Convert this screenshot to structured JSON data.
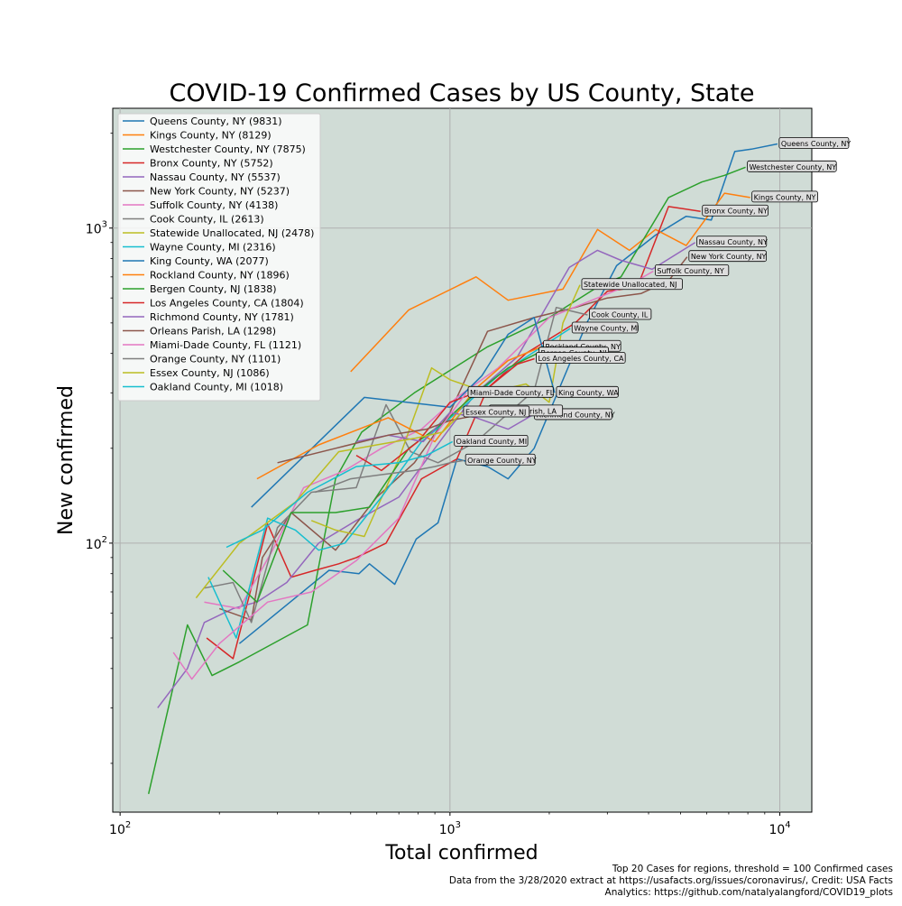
{
  "chart_data": {
    "type": "line",
    "title": "COVID-19 Confirmed Cases by US County, State",
    "xlabel": "Total confirmed",
    "ylabel": "New confirmed",
    "xscale": "log",
    "yscale": "log",
    "xlim": [
      95,
      12500
    ],
    "ylim": [
      14,
      2400
    ],
    "x_ticks": [
      100,
      1000,
      10000
    ],
    "y_ticks": [
      100,
      1000
    ],
    "x_tick_labels": [
      {
        "base": "10",
        "exp": "2"
      },
      {
        "base": "10",
        "exp": "3"
      },
      {
        "base": "10",
        "exp": "4"
      }
    ],
    "y_tick_labels": [
      {
        "base": "10",
        "exp": "2"
      },
      {
        "base": "10",
        "exp": "3"
      }
    ],
    "grid": true,
    "legend_position": "top-left",
    "background_color": "#d0dcd6",
    "footnote": [
      "Top 20 Cases for regions, threshold = 100 Confirmed cases",
      "Data from the 3/28/2020 extract at https://usafacts.org/issues/coronavirus/, Credit: USA Facts",
      "Analytics: https://github.com/natalyalangford/COVID19_plots"
    ],
    "series": [
      {
        "name": "Queens County, NY (9831)",
        "label": "Queens County, NY",
        "color": "#1f77b4",
        "x": [
          230,
          430,
          530,
          570,
          680,
          790,
          920,
          1050,
          1300,
          1500,
          1800,
          2600,
          3200,
          4200,
          5200,
          6200,
          7300,
          8200,
          9831
        ],
        "y": [
          48,
          82,
          80,
          86,
          74,
          103,
          116,
          185,
          175,
          160,
          200,
          500,
          760,
          950,
          1090,
          1060,
          1750,
          1780,
          1850
        ]
      },
      {
        "name": "Kings County, NY (8129)",
        "label": "Kings County, NY",
        "color": "#ff7f0e",
        "x": [
          500,
          750,
          1200,
          1500,
          2200,
          2800,
          3500,
          4200,
          5200,
          6800,
          8129
        ],
        "y": [
          350,
          550,
          700,
          590,
          640,
          990,
          850,
          990,
          880,
          1290,
          1250
        ]
      },
      {
        "name": "Westchester County, NY (7875)",
        "label": "Westchester County, NY",
        "color": "#2ca02c",
        "x": [
          122,
          160,
          190,
          230,
          370,
          450,
          540,
          780,
          1300,
          2000,
          2800,
          3300,
          4600,
          5800,
          6800,
          7875
        ],
        "y": [
          16,
          55,
          38,
          42,
          55,
          160,
          225,
          300,
          420,
          520,
          650,
          700,
          1250,
          1400,
          1470,
          1560
        ]
      },
      {
        "name": "Bronx County, NY (5752)",
        "label": "Bronx County, NY",
        "color": "#d62728",
        "x": [
          183,
          220,
          280,
          330,
          390,
          460,
          520,
          640,
          820,
          1050,
          1300,
          1700,
          2400,
          3000,
          3700,
          4600,
          5752
        ],
        "y": [
          50,
          43,
          115,
          78,
          82,
          86,
          90,
          100,
          160,
          185,
          310,
          400,
          500,
          630,
          650,
          1170,
          1130
        ]
      },
      {
        "name": "Nassau County, NY (5537)",
        "label": "Nassau County, NY",
        "color": "#9467bd",
        "x": [
          130,
          160,
          180,
          220,
          260,
          320,
          400,
          520,
          700,
          900,
          1200,
          1600,
          2300,
          2800,
          3300,
          4100,
          5537
        ],
        "y": [
          30,
          40,
          56,
          62,
          65,
          75,
          100,
          118,
          140,
          200,
          300,
          390,
          750,
          850,
          790,
          740,
          900
        ]
      },
      {
        "name": "New York County, NY (5237)",
        "label": "New York County, NY",
        "color": "#8c564b",
        "x": [
          200,
          250,
          270,
          330,
          450,
          600,
          780,
          1000,
          1300,
          1800,
          2400,
          3000,
          3800,
          4600,
          5237
        ],
        "y": [
          62,
          57,
          90,
          125,
          95,
          140,
          180,
          260,
          470,
          520,
          560,
          600,
          620,
          680,
          810
        ]
      },
      {
        "name": "Suffolk County, NY (4138)",
        "label": "Suffolk County, NY",
        "color": "#e377c2",
        "x": [
          180,
          230,
          290,
          360,
          480,
          620,
          820,
          1050,
          1400,
          2000,
          2800,
          3500,
          4138
        ],
        "y": [
          65,
          62,
          95,
          150,
          170,
          200,
          230,
          290,
          360,
          520,
          600,
          660,
          730
        ]
      },
      {
        "name": "Cook County, IL (2613)",
        "label": "Cook County, IL",
        "color": "#7f7f7f",
        "x": [
          180,
          220,
          250,
          300,
          380,
          520,
          640,
          760,
          920,
          1200,
          1800,
          2100,
          2613
        ],
        "y": [
          72,
          75,
          56,
          112,
          145,
          150,
          275,
          195,
          180,
          210,
          305,
          560,
          530
        ]
      },
      {
        "name": "Statewide Unallocated, NJ (2478)",
        "label": "Statewide Unallocated, NJ",
        "color": "#bcbd22",
        "x": [
          380,
          450,
          550,
          700,
          880,
          1000,
          1300,
          1700,
          2000,
          2200,
          2478
        ],
        "y": [
          118,
          110,
          105,
          185,
          360,
          330,
          300,
          320,
          280,
          500,
          660
        ]
      },
      {
        "name": "Wayne County, MI (2316)",
        "label": "Wayne County, MI",
        "color": "#17becf",
        "x": [
          185,
          225,
          280,
          340,
          400,
          480,
          620,
          820,
          1050,
          1400,
          1900,
          2316
        ],
        "y": [
          78,
          50,
          120,
          110,
          95,
          100,
          140,
          210,
          260,
          340,
          420,
          480
        ]
      },
      {
        "name": "King County, WA (2077)",
        "label": "King County, WA",
        "color": "#1f77b4",
        "x": [
          250,
          550,
          1000,
          1250,
          1500,
          1800,
          2077
        ],
        "y": [
          130,
          290,
          270,
          340,
          460,
          520,
          300
        ]
      },
      {
        "name": "Rockland County, NY (1896)",
        "label": "Rockland County, NY",
        "color": "#ff7f0e",
        "x": [
          260,
          400,
          650,
          900,
          1200,
          1500,
          1896
        ],
        "y": [
          160,
          205,
          250,
          210,
          310,
          380,
          420
        ]
      },
      {
        "name": "Bergen County, NJ (1838)",
        "label": "Bergen County, NJ",
        "color": "#2ca02c",
        "x": [
          205,
          260,
          330,
          450,
          570,
          750,
          950,
          1200,
          1500,
          1838
        ],
        "y": [
          82,
          65,
          125,
          125,
          130,
          200,
          240,
          300,
          360,
          400
        ]
      },
      {
        "name": "Los Angeles County, CA (1804)",
        "label": "Los Angeles County, CA",
        "color": "#d62728",
        "x": [
          520,
          620,
          800,
          1000,
          1300,
          1600,
          1804
        ],
        "y": [
          190,
          170,
          210,
          280,
          310,
          370,
          385
        ]
      },
      {
        "name": "Richmond County, NY (1781)",
        "label": "Richmond County, NY",
        "color": "#9467bd",
        "x": [
          520,
          650,
          830,
          1000,
          1200,
          1500,
          1781
        ],
        "y": [
          210,
          220,
          210,
          260,
          250,
          230,
          255
        ]
      },
      {
        "name": "Orleans Parish, LA (1298)",
        "label": "Orleans Parish, LA",
        "color": "#8c564b",
        "x": [
          300,
          450,
          650,
          850,
          1000,
          1150,
          1298
        ],
        "y": [
          180,
          200,
          220,
          230,
          245,
          252,
          262
        ]
      },
      {
        "name": "Miami-Dade County, FL (1121)",
        "label": "Miami-Dade County, FL",
        "color": "#e377c2",
        "x": [
          145,
          165,
          200,
          280,
          380,
          520,
          700,
          900,
          1121
        ],
        "y": [
          45,
          37,
          48,
          65,
          70,
          88,
          120,
          220,
          300
        ]
      },
      {
        "name": "Orange County, NY (1101)",
        "label": "Orange County, NY",
        "color": "#7f7f7f",
        "x": [
          390,
          500,
          620,
          780,
          900,
          1000,
          1101
        ],
        "y": [
          145,
          160,
          165,
          170,
          175,
          180,
          183
        ]
      },
      {
        "name": "Essex County, NJ (1086)",
        "label": "Essex County, NJ",
        "color": "#bcbd22",
        "x": [
          170,
          230,
          340,
          460,
          600,
          780,
          950,
          1086
        ],
        "y": [
          67,
          100,
          135,
          195,
          205,
          215,
          225,
          260
        ]
      },
      {
        "name": "Oakland County, MI (1018)",
        "label": "Oakland County, MI",
        "color": "#17becf",
        "x": [
          210,
          270,
          370,
          520,
          700,
          850,
          1018
        ],
        "y": [
          97,
          110,
          145,
          175,
          180,
          190,
          210
        ]
      }
    ]
  }
}
